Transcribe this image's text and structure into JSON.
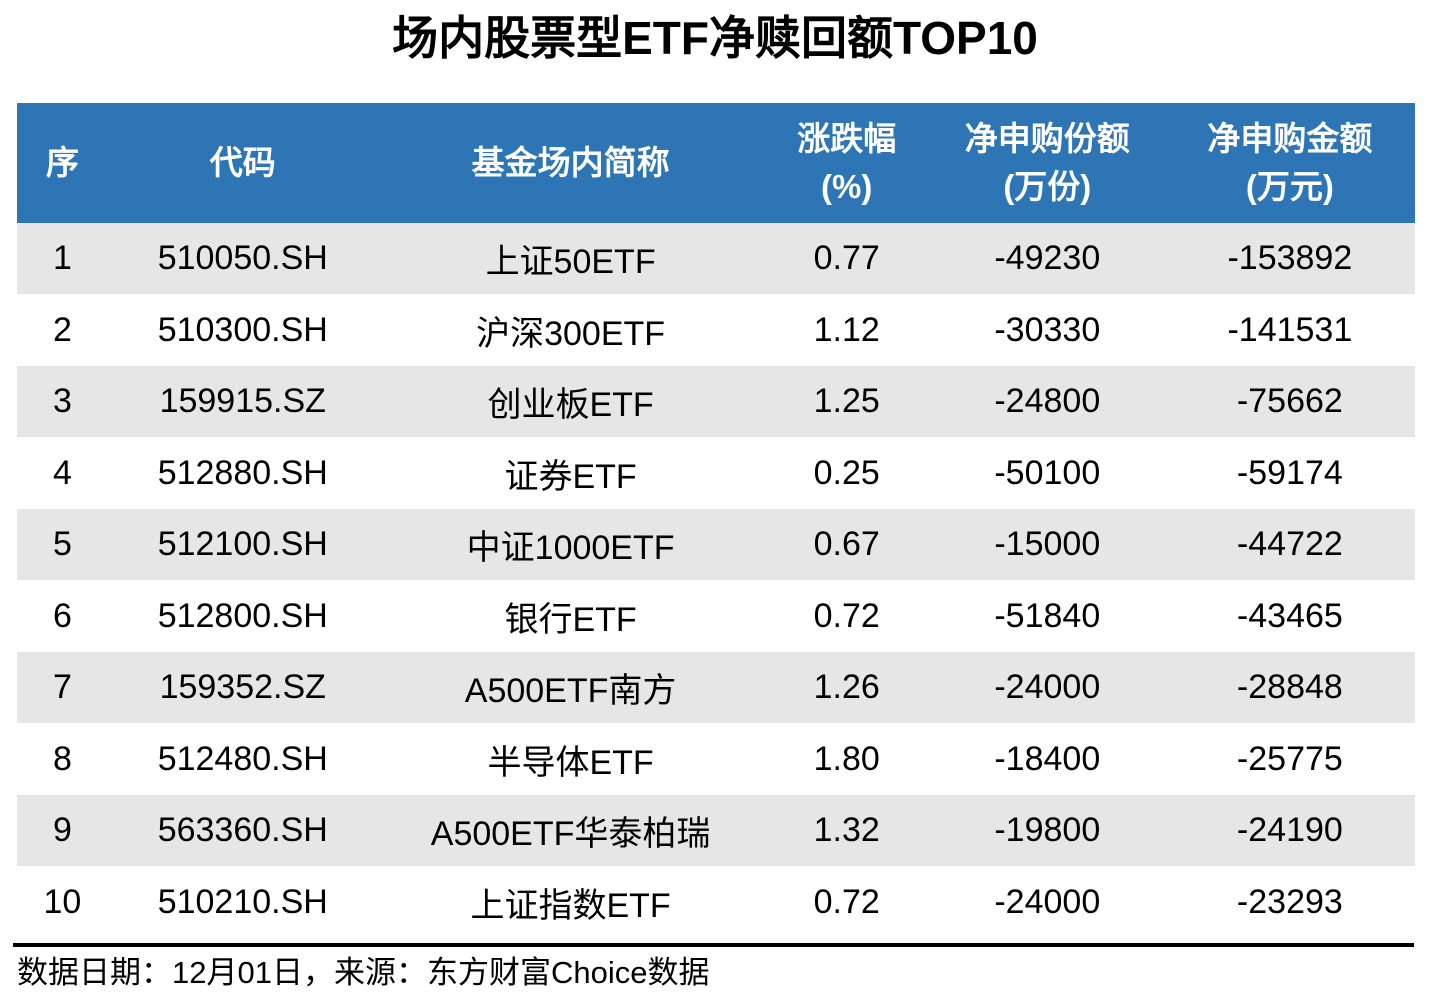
{
  "title": "场内股票型ETF净赎回额TOP10",
  "table": {
    "columns": [
      {
        "label": "序",
        "sub": ""
      },
      {
        "label": "代码",
        "sub": ""
      },
      {
        "label": "基金场内简称",
        "sub": ""
      },
      {
        "label": "涨跌幅",
        "sub": "(%)"
      },
      {
        "label": "净申购份额",
        "sub": "(万份)"
      },
      {
        "label": "净申购金额",
        "sub": "(万元)"
      }
    ],
    "rows": [
      [
        "1",
        "510050.SH",
        "上证50ETF",
        "0.77",
        "-49230",
        "-153892"
      ],
      [
        "2",
        "510300.SH",
        "沪深300ETF",
        "1.12",
        "-30330",
        "-141531"
      ],
      [
        "3",
        "159915.SZ",
        "创业板ETF",
        "1.25",
        "-24800",
        "-75662"
      ],
      [
        "4",
        "512880.SH",
        "证券ETF",
        "0.25",
        "-50100",
        "-59174"
      ],
      [
        "5",
        "512100.SH",
        "中证1000ETF",
        "0.67",
        "-15000",
        "-44722"
      ],
      [
        "6",
        "512800.SH",
        "银行ETF",
        "0.72",
        "-51840",
        "-43465"
      ],
      [
        "7",
        "159352.SZ",
        "A500ETF南方",
        "1.26",
        "-24000",
        "-28848"
      ],
      [
        "8",
        "512480.SH",
        "半导体ETF",
        "1.80",
        "-18400",
        "-25775"
      ],
      [
        "9",
        "563360.SH",
        "A500ETF华泰柏瑞",
        "1.32",
        "-19800",
        "-24190"
      ],
      [
        "10",
        "510210.SH",
        "上证指数ETF",
        "0.72",
        "-24000",
        "-23293"
      ]
    ]
  },
  "footer": {
    "text": "数据日期：12月01日，来源：东方财富Choice数据"
  },
  "colors": {
    "header_bg": "#2E75B6",
    "header_text": "#FFFFFF",
    "row_alt_bg": "#E6E6E6",
    "row_bg": "#FFFFFF",
    "text": "#000000"
  },
  "chart_data": {
    "type": "table",
    "title": "场内股票型ETF净赎回额TOP10",
    "columns": [
      "序",
      "代码",
      "基金场内简称",
      "涨跌幅(%)",
      "净申购份额(万份)",
      "净申购金额(万元)"
    ],
    "rows": [
      [
        1,
        "510050.SH",
        "上证50ETF",
        0.77,
        -49230,
        -153892
      ],
      [
        2,
        "510300.SH",
        "沪深300ETF",
        1.12,
        -30330,
        -141531
      ],
      [
        3,
        "159915.SZ",
        "创业板ETF",
        1.25,
        -24800,
        -75662
      ],
      [
        4,
        "512880.SH",
        "证券ETF",
        0.25,
        -50100,
        -59174
      ],
      [
        5,
        "512100.SH",
        "中证1000ETF",
        0.67,
        -15000,
        -44722
      ],
      [
        6,
        "512800.SH",
        "银行ETF",
        0.72,
        -51840,
        -43465
      ],
      [
        7,
        "159352.SZ",
        "A500ETF南方",
        1.26,
        -24000,
        -28848
      ],
      [
        8,
        "512480.SH",
        "半导体ETF",
        1.8,
        -18400,
        -25775
      ],
      [
        9,
        "563360.SH",
        "A500ETF华泰柏瑞",
        1.32,
        -19800,
        -24190
      ],
      [
        10,
        "510210.SH",
        "上证指数ETF",
        0.72,
        -24000,
        -23293
      ]
    ],
    "source_note": "数据日期：12月01日，来源：东方财富Choice数据",
    "layout": {
      "header_style": "blue-banded",
      "row_striping": "odd-gray"
    }
  }
}
